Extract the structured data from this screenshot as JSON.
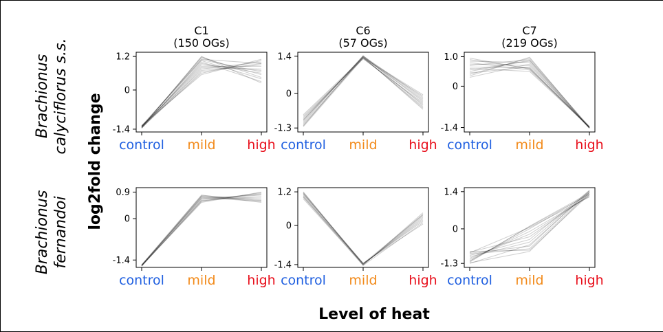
{
  "figure": {
    "ylabel": "log2fold change",
    "xlabel": "Level of heat",
    "rows": [
      {
        "species": "Brachionus",
        "sublabel": "calyciflorus s.s."
      },
      {
        "species": "Brachionus",
        "sublabel": "fernandoi"
      }
    ],
    "category_colors": {
      "control": "#1f5fe0",
      "mild": "#f28a1a",
      "high": "#e8101c"
    }
  },
  "chart_data": [
    {
      "type": "line",
      "title": "C1",
      "subtitle": "(150 OGs)",
      "row": 0,
      "col": 0,
      "categories": [
        "control",
        "mild",
        "high"
      ],
      "yticks": [
        -1.4,
        0,
        1.2
      ],
      "ytick_labels": [
        "-1.4",
        "0",
        "1.2"
      ],
      "ylim": [
        -1.5,
        1.35
      ],
      "lines": [
        [
          -1.3,
          1.05,
          0.4
        ],
        [
          -1.35,
          1.2,
          0.25
        ],
        [
          -1.32,
          0.9,
          0.7
        ],
        [
          -1.28,
          1.1,
          0.95
        ],
        [
          -1.36,
          0.75,
          1.0
        ],
        [
          -1.31,
          0.6,
          1.05
        ],
        [
          -1.33,
          1.15,
          0.55
        ],
        [
          -1.29,
          0.85,
          0.85
        ],
        [
          -1.34,
          0.95,
          0.6
        ],
        [
          -1.3,
          0.7,
          0.9
        ],
        [
          -1.37,
          1.0,
          0.3
        ],
        [
          -1.27,
          0.55,
          1.1
        ],
        [
          -1.33,
          1.18,
          0.45
        ],
        [
          -1.31,
          0.8,
          0.75
        ],
        [
          -1.35,
          0.65,
          0.95
        ],
        [
          -1.29,
          1.08,
          0.65
        ]
      ]
    },
    {
      "type": "line",
      "title": "C6",
      "subtitle": "(57 OGs)",
      "row": 0,
      "col": 1,
      "categories": [
        "control",
        "mild",
        "high"
      ],
      "yticks": [
        -1.3,
        0,
        1.4
      ],
      "ytick_labels": [
        "-1.3",
        "0",
        "1.4"
      ],
      "ylim": [
        -1.45,
        1.55
      ],
      "lines": [
        [
          -0.8,
          1.35,
          -0.05
        ],
        [
          -1.0,
          1.4,
          -0.2
        ],
        [
          -1.2,
          1.38,
          -0.6
        ],
        [
          -0.9,
          1.3,
          -0.35
        ],
        [
          -1.1,
          1.42,
          -0.45
        ],
        [
          -1.25,
          1.33,
          -0.1
        ],
        [
          -0.95,
          1.37,
          -0.25
        ],
        [
          -1.15,
          1.34,
          -0.5
        ],
        [
          -1.05,
          1.41,
          -0.15
        ],
        [
          -0.85,
          1.32,
          -0.4
        ],
        [
          -1.22,
          1.39,
          -0.3
        ],
        [
          -1.0,
          1.36,
          -0.55
        ]
      ]
    },
    {
      "type": "line",
      "title": "C7",
      "subtitle": "(219 OGs)",
      "row": 0,
      "col": 2,
      "categories": [
        "control",
        "mild",
        "high"
      ],
      "yticks": [
        -1.4,
        0,
        1.0
      ],
      "ytick_labels": [
        "-1.4",
        "0",
        "1.0"
      ],
      "ylim": [
        -1.55,
        1.15
      ],
      "lines": [
        [
          0.4,
          0.95,
          -1.4
        ],
        [
          0.8,
          0.55,
          -1.38
        ],
        [
          0.55,
          0.85,
          -1.42
        ],
        [
          0.9,
          0.6,
          -1.39
        ],
        [
          0.3,
          0.75,
          -1.41
        ],
        [
          0.7,
          0.9,
          -1.37
        ],
        [
          0.45,
          0.65,
          -1.43
        ],
        [
          0.85,
          0.8,
          -1.4
        ],
        [
          0.6,
          0.5,
          -1.38
        ],
        [
          0.35,
          0.98,
          -1.42
        ],
        [
          0.75,
          0.7,
          -1.39
        ],
        [
          0.5,
          0.88,
          -1.41
        ],
        [
          0.65,
          0.62,
          -1.4
        ],
        [
          0.95,
          0.58,
          -1.36
        ]
      ]
    },
    {
      "type": "line",
      "title": "",
      "subtitle": "",
      "row": 1,
      "col": 0,
      "categories": [
        "control",
        "mild",
        "high"
      ],
      "yticks": [
        -1.4,
        0,
        0.9
      ],
      "ytick_labels": [
        "-1.4",
        "0",
        "0.9"
      ],
      "ylim": [
        -1.65,
        1.05
      ],
      "lines": [
        [
          -1.58,
          0.75,
          0.6
        ],
        [
          -1.6,
          0.6,
          0.85
        ],
        [
          -1.57,
          0.8,
          0.55
        ],
        [
          -1.59,
          0.55,
          0.9
        ],
        [
          -1.58,
          0.7,
          0.7
        ],
        [
          -1.61,
          0.65,
          0.8
        ],
        [
          -1.56,
          0.78,
          0.65
        ],
        [
          -1.6,
          0.58,
          0.88
        ],
        [
          -1.58,
          0.72,
          0.58
        ],
        [
          -1.59,
          0.62,
          0.75
        ],
        [
          -1.57,
          0.68,
          0.82
        ],
        [
          -1.6,
          0.76,
          0.62
        ]
      ]
    },
    {
      "type": "line",
      "title": "",
      "subtitle": "",
      "row": 1,
      "col": 1,
      "categories": [
        "control",
        "mild",
        "high"
      ],
      "yticks": [
        -1.4,
        0,
        1.2
      ],
      "ytick_labels": [
        "-1.4",
        "0",
        "1.2"
      ],
      "ylim": [
        -1.5,
        1.35
      ],
      "lines": [
        [
          1.15,
          -1.4,
          0.35
        ],
        [
          1.0,
          -1.36,
          0.15
        ],
        [
          1.2,
          -1.42,
          0.45
        ],
        [
          1.05,
          -1.38,
          0.25
        ],
        [
          1.12,
          -1.35,
          0.05
        ],
        [
          0.95,
          -1.41,
          0.4
        ],
        [
          1.18,
          -1.37,
          0.2
        ],
        [
          1.08,
          -1.39,
          0.3
        ],
        [
          1.02,
          -1.43,
          0.1
        ],
        [
          1.14,
          -1.36,
          0.38
        ]
      ]
    },
    {
      "type": "line",
      "title": "",
      "subtitle": "",
      "row": 1,
      "col": 2,
      "categories": [
        "control",
        "mild",
        "high"
      ],
      "yticks": [
        -1.3,
        0,
        1.4
      ],
      "ytick_labels": [
        "-1.3",
        "0",
        "1.4"
      ],
      "ylim": [
        -1.45,
        1.55
      ],
      "lines": [
        [
          -0.85,
          -0.8,
          1.3
        ],
        [
          -1.25,
          0.1,
          1.35
        ],
        [
          -1.0,
          -0.4,
          1.45
        ],
        [
          -0.9,
          0.05,
          1.2
        ],
        [
          -1.3,
          -0.6,
          1.4
        ],
        [
          -1.1,
          -0.2,
          1.25
        ],
        [
          -0.95,
          -0.75,
          1.38
        ],
        [
          -1.2,
          0.0,
          1.32
        ],
        [
          -1.05,
          -0.5,
          1.42
        ],
        [
          -0.88,
          -0.3,
          1.28
        ],
        [
          -1.28,
          -0.85,
          1.36
        ],
        [
          -1.15,
          -0.1,
          1.22
        ],
        [
          -0.92,
          -0.65,
          1.44
        ],
        [
          -1.22,
          0.08,
          1.3
        ]
      ]
    }
  ]
}
